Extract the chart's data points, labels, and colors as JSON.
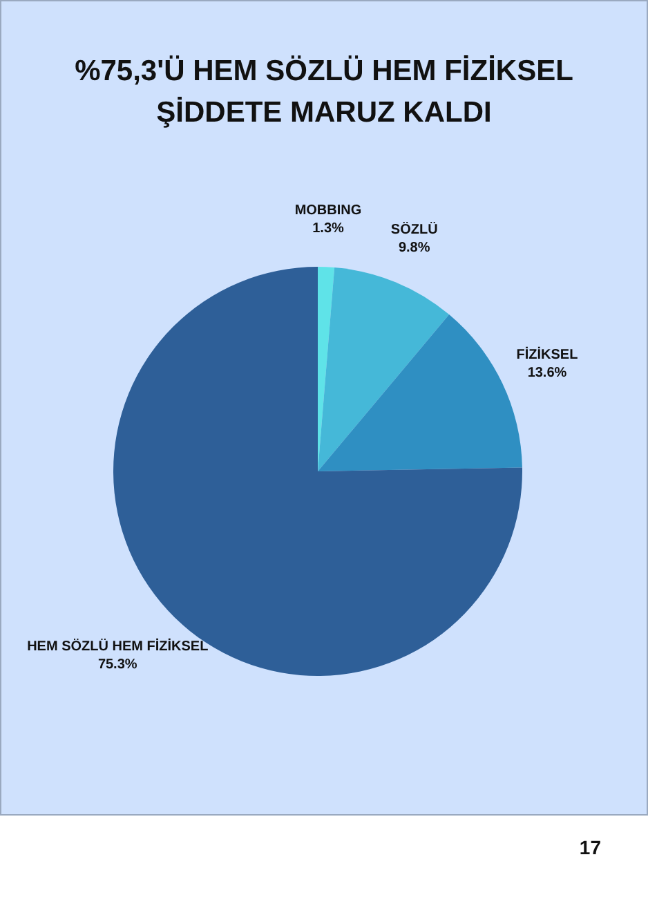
{
  "chart_data": {
    "type": "pie",
    "title": "%75,3'Ü HEM SÖZLÜ HEM FİZİKSEL\nŞİDDETE MARUZ KALDI",
    "categories": [
      "MOBBING",
      "SÖZLÜ",
      "FİZİKSEL",
      "HEM SÖZLÜ HEM FİZİKSEL"
    ],
    "values": [
      1.3,
      9.8,
      13.6,
      75.3
    ],
    "value_labels": [
      "1.3%",
      "9.8%",
      "13.6%",
      "75.3%"
    ],
    "colors": [
      "#5fe3e8",
      "#45b8d8",
      "#2f8fc2",
      "#2e5f98"
    ],
    "annotations": [
      "17"
    ],
    "legend": false
  }
}
